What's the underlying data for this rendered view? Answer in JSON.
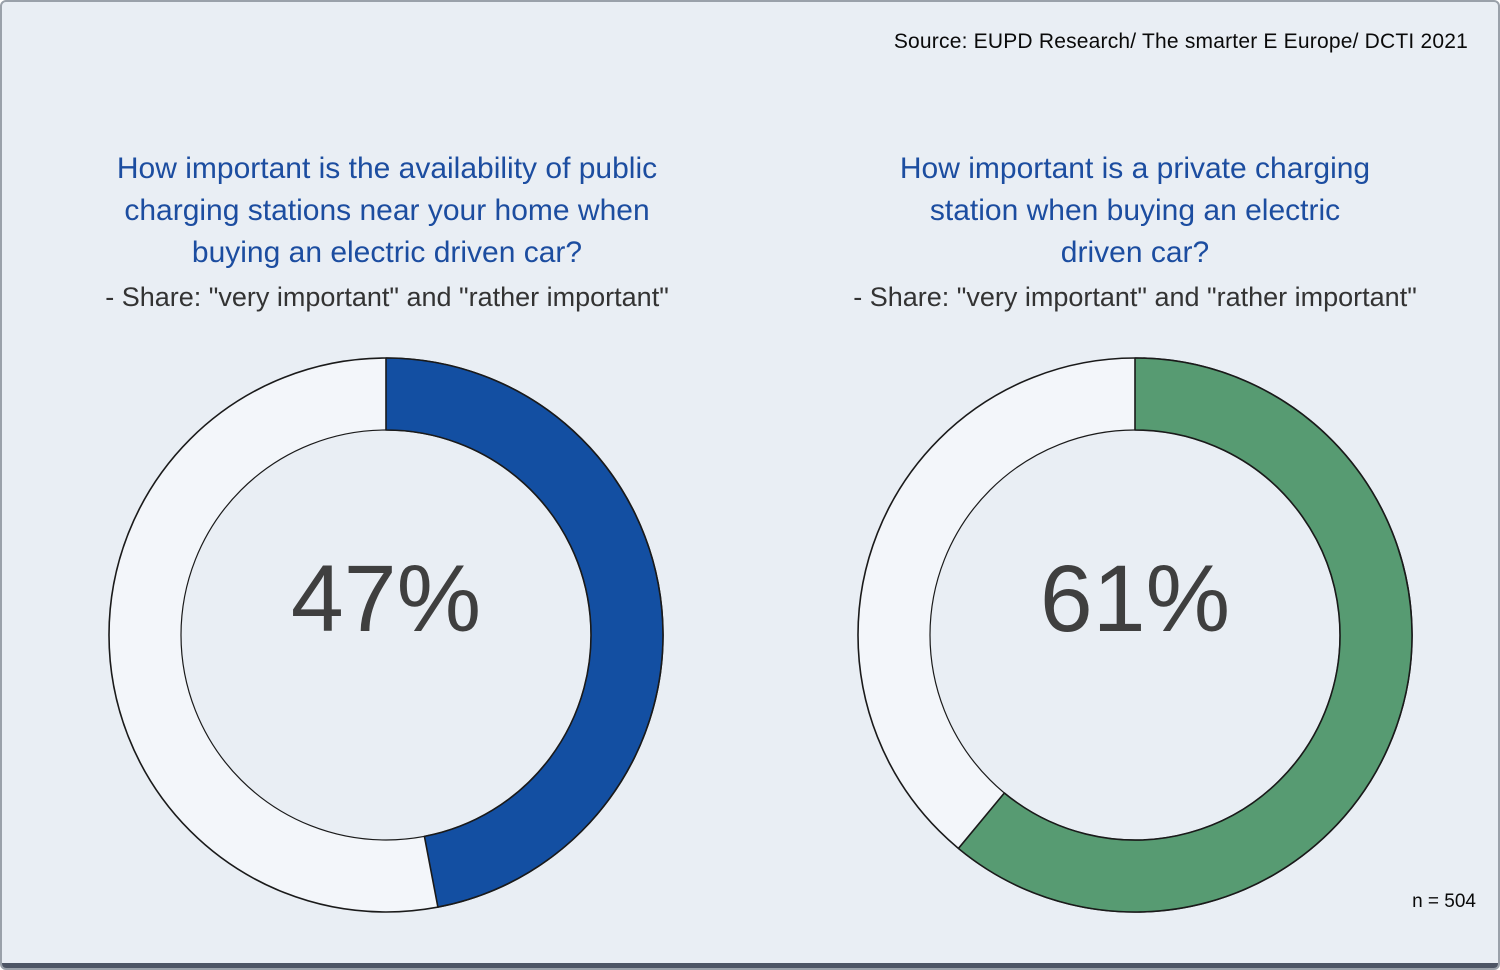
{
  "source": "Source: EUPD Research/ The smarter E Europe/ DCTI 2021",
  "sample_size": "n = 504",
  "colors": {
    "background": "#e9eef4",
    "ring_fill": "#f3f6fa",
    "outline": "#1a1a1a",
    "title_blue": "#1c4da0",
    "value_gray": "#3f3f3f",
    "public_blue": "#134fa2",
    "private_green": "#579b72"
  },
  "chart_data": [
    {
      "type": "pie",
      "subtype": "donut",
      "title": "How important is the availability of public charging stations near your home when buying an electric driven car?",
      "title_lines": [
        "How important is the availability of public",
        "charging stations near your home when",
        "buying an electric driven car?"
      ],
      "subtitle": "- Share: \"very important\" and \"rather important\"",
      "series": [
        {
          "name": "very important + rather important",
          "value": 47
        },
        {
          "name": "remainder",
          "value": 53
        }
      ],
      "center_label": "47%",
      "color": "#134fa2",
      "remainder_color": "#f3f6fa",
      "start_angle": "top",
      "direction": "clockwise"
    },
    {
      "type": "pie",
      "subtype": "donut",
      "title": "How important is a private charging station when buying an electric driven car?",
      "title_lines": [
        "How important is a private charging",
        "station when buying an electric",
        "driven car?"
      ],
      "subtitle": "- Share: \"very important\" and \"rather important\"",
      "series": [
        {
          "name": "very important + rather important",
          "value": 61
        },
        {
          "name": "remainder",
          "value": 39
        }
      ],
      "center_label": "61%",
      "color": "#579b72",
      "remainder_color": "#f3f6fa",
      "start_angle": "top",
      "direction": "clockwise"
    }
  ]
}
